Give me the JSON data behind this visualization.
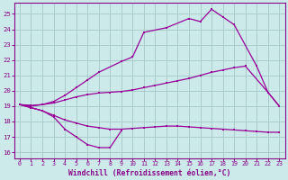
{
  "bg_color": "#cceaea",
  "grid_color": "#aacccc",
  "line_color": "#990099",
  "xlabel": "Windchill (Refroidissement éolien,°C)",
  "xlabel_color": "#880088",
  "tick_color": "#880088",
  "xlim": [
    -0.5,
    23.5
  ],
  "ylim": [
    15.6,
    25.7
  ],
  "yticks": [
    16,
    17,
    18,
    19,
    20,
    21,
    22,
    23,
    24,
    25
  ],
  "xticks": [
    0,
    1,
    2,
    3,
    4,
    5,
    6,
    7,
    8,
    9,
    10,
    11,
    12,
    13,
    14,
    15,
    16,
    17,
    18,
    19,
    20,
    21,
    22,
    23
  ],
  "series": [
    {
      "x": [
        0,
        1,
        2,
        3,
        4,
        5,
        6,
        7,
        8,
        9
      ],
      "y": [
        19.1,
        18.9,
        18.7,
        18.3,
        17.5,
        17.0,
        16.5,
        16.3,
        16.3,
        17.4
      ]
    },
    {
      "x": [
        0,
        1,
        2,
        3,
        4,
        5,
        6,
        7,
        8,
        9,
        10,
        11,
        12,
        13,
        14,
        15,
        16,
        17,
        18,
        19,
        20,
        21,
        22,
        23
      ],
      "y": [
        19.1,
        18.9,
        18.7,
        18.4,
        18.1,
        17.9,
        17.7,
        17.6,
        17.5,
        17.5,
        17.55,
        17.6,
        17.65,
        17.7,
        17.7,
        17.65,
        17.6,
        17.55,
        17.5,
        17.45,
        17.4,
        17.35,
        17.3,
        17.3
      ]
    },
    {
      "x": [
        0,
        1,
        2,
        3,
        4,
        5,
        6,
        7,
        8,
        9,
        10,
        11,
        12,
        13,
        14,
        15,
        16,
        17,
        18,
        19,
        20,
        22,
        23
      ],
      "y": [
        19.1,
        19.05,
        19.1,
        19.2,
        19.4,
        19.6,
        19.75,
        19.85,
        19.9,
        19.95,
        20.05,
        20.2,
        20.35,
        20.5,
        20.65,
        20.8,
        21.0,
        21.2,
        21.35,
        21.5,
        21.6,
        19.9,
        19.0
      ]
    },
    {
      "x": [
        0,
        1,
        2,
        3,
        4,
        5,
        6,
        7,
        9,
        10,
        11,
        13,
        15,
        16,
        17,
        18,
        19,
        21,
        22,
        23
      ],
      "y": [
        19.1,
        19.0,
        19.1,
        19.3,
        19.7,
        20.2,
        20.7,
        21.2,
        21.9,
        22.2,
        23.8,
        24.1,
        24.7,
        24.5,
        25.3,
        24.8,
        24.3,
        21.6,
        19.9,
        19.0
      ]
    }
  ]
}
